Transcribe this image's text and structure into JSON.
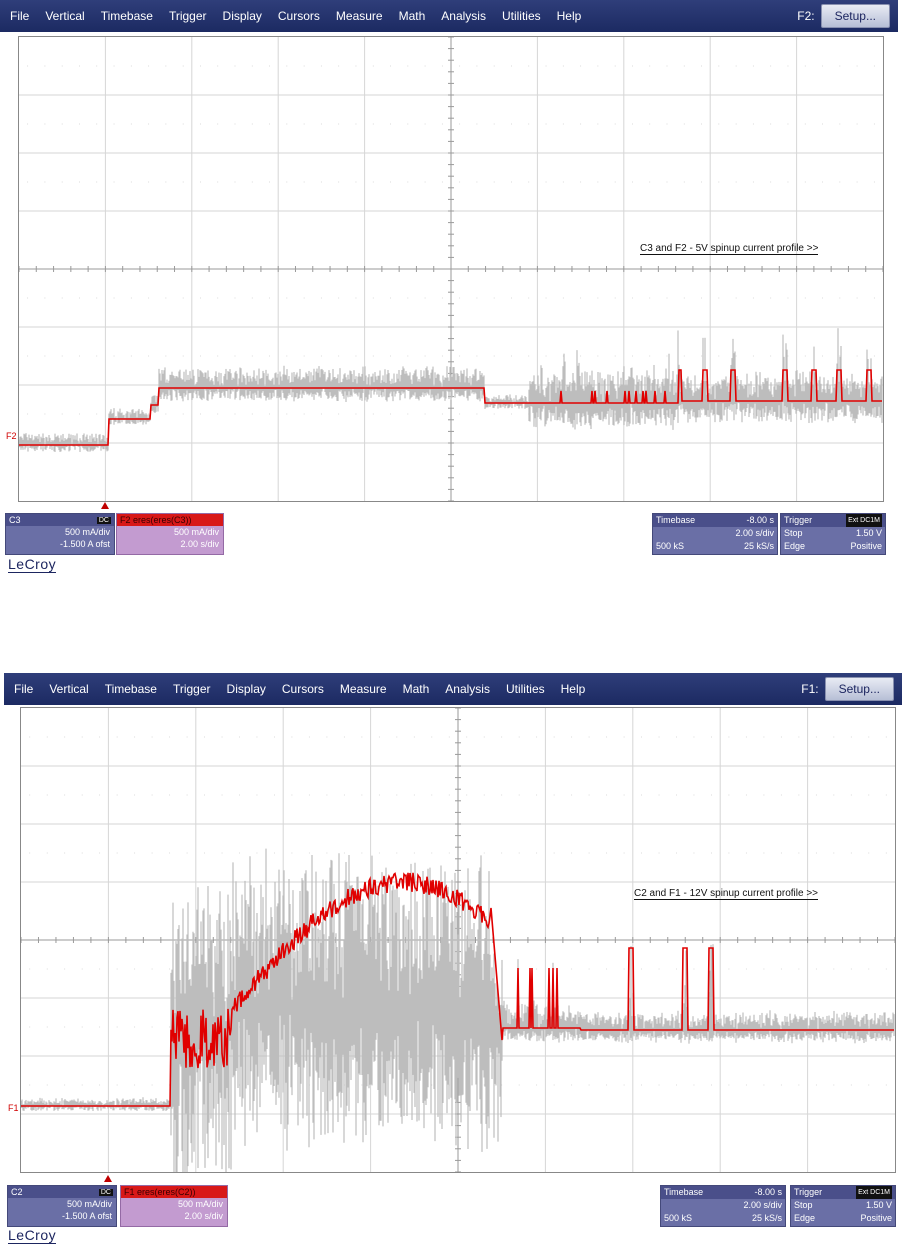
{
  "menu_items": [
    "File",
    "Vertical",
    "Timebase",
    "Trigger",
    "Display",
    "Cursors",
    "Measure",
    "Math",
    "Analysis",
    "Utilities",
    "Help"
  ],
  "setup_label": "Setup...",
  "logo": "LeCroy",
  "scopes": [
    {
      "fn_label": "F2:",
      "annotation": "C3 and F2 - 5V spinup current profile >>",
      "trace_marker": "F2",
      "channel": {
        "name": "C3",
        "coupling": "DC",
        "scale": "500 mA/div",
        "offset": "-1.500 A ofst"
      },
      "math": {
        "title": "F2  eres(eres(C3))",
        "scale": "500 mA/div",
        "timebase": "2.00 s/div"
      },
      "timebase": {
        "label": "Timebase",
        "delay": "-8.00 s",
        "per_div": "2.00 s/div",
        "samples": "500 kS",
        "rate": "25 kS/s"
      },
      "trigger": {
        "label": "Trigger",
        "badge": "Ext DC1M",
        "mode": "Stop",
        "level": "1.50 V",
        "type": "Edge",
        "slope": "Positive"
      },
      "trace_colors": {
        "envelope": "#bdbdbd",
        "filtered": "#e00000"
      }
    },
    {
      "fn_label": "F1:",
      "annotation": "C2 and F1 - 12V spinup current profile >>",
      "trace_marker": "F1",
      "channel": {
        "name": "C2",
        "coupling": "DC",
        "scale": "500 mA/div",
        "offset": "-1.500 A ofst"
      },
      "math": {
        "title": "F1  eres(eres(C2))",
        "scale": "500 mA/div",
        "timebase": "2.00 s/div"
      },
      "timebase": {
        "label": "Timebase",
        "delay": "-8.00 s",
        "per_div": "2.00 s/div",
        "samples": "500 kS",
        "rate": "25 kS/s"
      },
      "trigger": {
        "label": "Trigger",
        "badge": "Ext DC1M",
        "mode": "Stop",
        "level": "1.50 V",
        "type": "Edge",
        "slope": "Positive"
      },
      "trace_colors": {
        "envelope": "#bdbdbd",
        "filtered": "#e00000"
      }
    }
  ]
}
